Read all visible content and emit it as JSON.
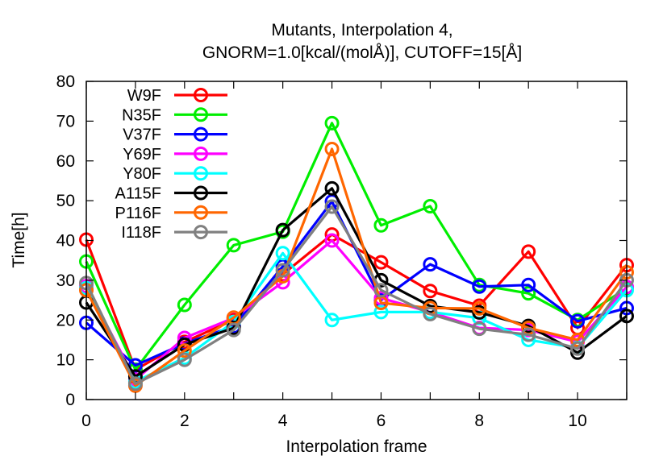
{
  "chart_data": {
    "type": "line",
    "title": [
      "Mutants, Interpolation 4,",
      "GNORM=1.0[kcal/(molÅ)], CUTOFF=15[Å]"
    ],
    "xlabel": "Interpolation frame",
    "ylabel": "Time[h]",
    "xlim": [
      0,
      11
    ],
    "ylim": [
      0,
      80
    ],
    "xticks": [
      "0",
      "2",
      "4",
      "6",
      "8",
      "10"
    ],
    "yticks": [
      "0",
      "10",
      "20",
      "30",
      "40",
      "50",
      "60",
      "70",
      "80"
    ],
    "grid": false,
    "legend_position": "top-left",
    "x": [
      0,
      1,
      2,
      3,
      4,
      5,
      6,
      7,
      8,
      9,
      10,
      11
    ],
    "series": [
      {
        "name": "W9F",
        "color": "#ff0000",
        "values": [
          40.2,
          7.5,
          14.5,
          20.0,
          31.5,
          41.5,
          34.5,
          27.3,
          23.6,
          37.2,
          18.0,
          33.8
        ]
      },
      {
        "name": "N35F",
        "color": "#00ee00",
        "values": [
          34.7,
          7.5,
          23.8,
          38.8,
          42.2,
          69.5,
          43.8,
          48.6,
          28.8,
          26.7,
          20.0,
          28.0
        ]
      },
      {
        "name": "V37F",
        "color": "#0000ff",
        "values": [
          19.3,
          8.6,
          14.1,
          18.4,
          33.5,
          49.8,
          25.0,
          34.0,
          28.4,
          28.8,
          19.7,
          23.0
        ]
      },
      {
        "name": "Y69F",
        "color": "#ff00ff",
        "values": [
          28.5,
          5.0,
          15.5,
          20.5,
          29.5,
          40.0,
          25.5,
          22.0,
          18.0,
          17.5,
          14.5,
          28.3
        ]
      },
      {
        "name": "Y80F",
        "color": "#00ffff",
        "values": [
          28.0,
          4.5,
          10.5,
          19.5,
          36.8,
          20.0,
          22.0,
          22.0,
          20.5,
          15.0,
          13.0,
          27.5
        ]
      },
      {
        "name": "A115F",
        "color": "#000000",
        "values": [
          24.4,
          5.8,
          13.8,
          18.0,
          42.6,
          53.1,
          30.0,
          23.5,
          21.9,
          18.5,
          11.8,
          21.0
        ]
      },
      {
        "name": "P116F",
        "color": "#ff6600",
        "values": [
          27.5,
          3.5,
          12.3,
          20.6,
          31.0,
          63.0,
          24.3,
          23.0,
          22.9,
          18.0,
          15.0,
          32.0
        ]
      },
      {
        "name": "I118F",
        "color": "#808080",
        "values": [
          29.3,
          4.0,
          10.0,
          17.5,
          32.5,
          48.5,
          27.5,
          21.5,
          17.8,
          16.3,
          12.8,
          30.0
        ]
      }
    ]
  }
}
